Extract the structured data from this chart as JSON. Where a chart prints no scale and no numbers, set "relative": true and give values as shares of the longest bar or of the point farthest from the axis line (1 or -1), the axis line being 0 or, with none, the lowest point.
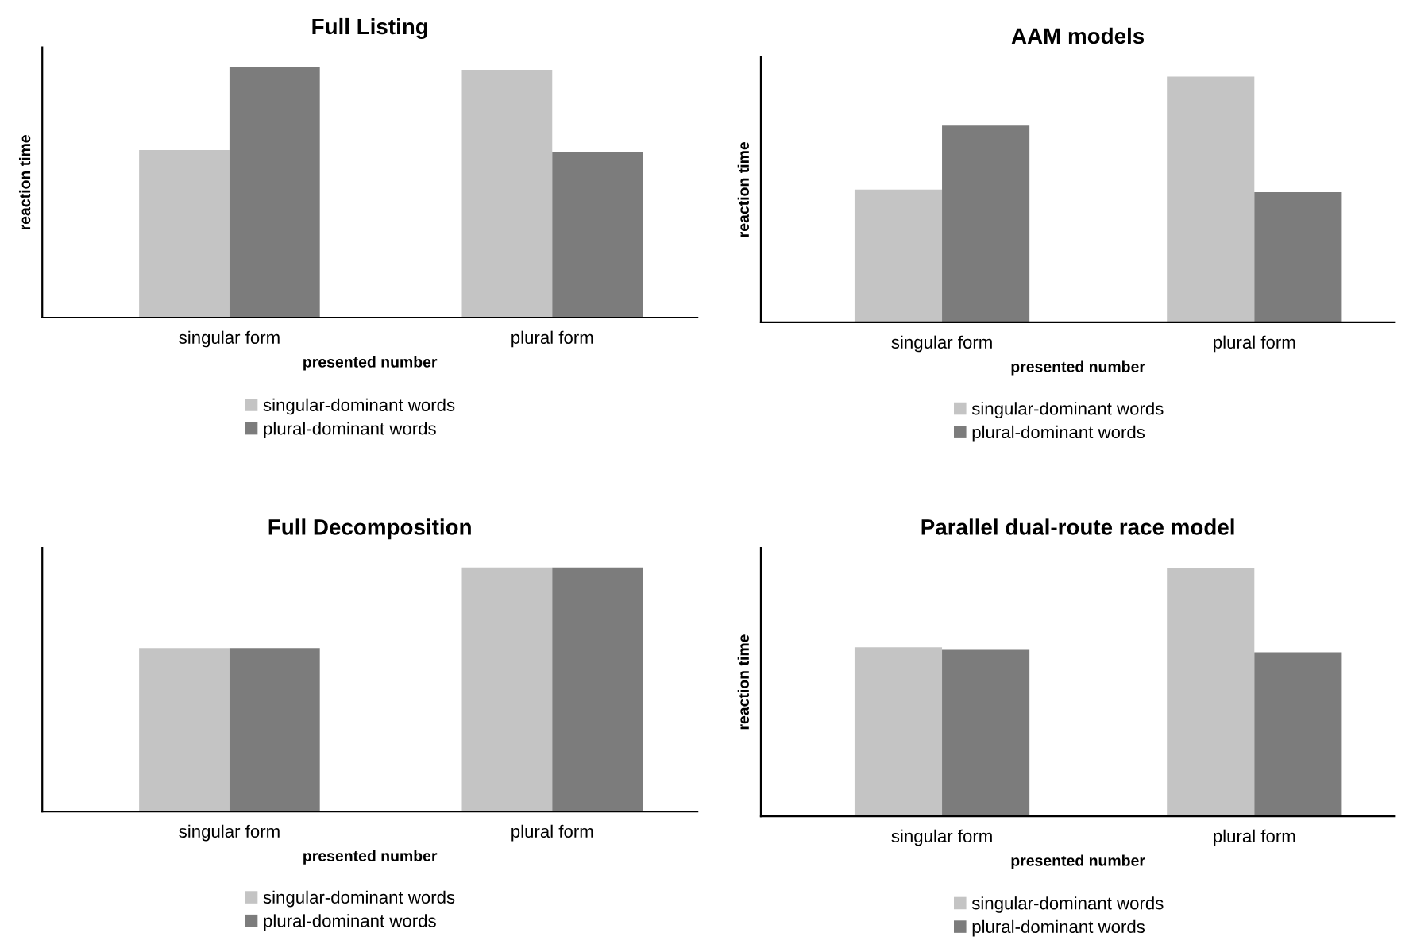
{
  "chart_data": [
    {
      "type": "bar",
      "title": "Full Listing",
      "xlabel": "presented number",
      "ylabel": "reaction time",
      "categories": [
        "singular form",
        "plural form"
      ],
      "relative": true,
      "legend": "bottom",
      "series": [
        {
          "name": "singular-dominant words",
          "color": "#c4c4c4",
          "values": [
            0.67,
            0.99
          ]
        },
        {
          "name": "plural-dominant words",
          "color": "#7c7c7c",
          "values": [
            1,
            0.66
          ]
        }
      ]
    },
    {
      "type": "bar",
      "title": "AAM models",
      "xlabel": "presented number",
      "ylabel": "reaction time",
      "categories": [
        "singular form",
        "plural form"
      ],
      "relative": true,
      "legend": "bottom",
      "series": [
        {
          "name": "singular-dominant words",
          "color": "#c4c4c4",
          "values": [
            0.54,
            1
          ]
        },
        {
          "name": "plural-dominant words",
          "color": "#7c7c7c",
          "values": [
            0.8,
            0.53
          ]
        }
      ]
    },
    {
      "type": "bar",
      "title": "Full Decomposition",
      "xlabel": "presented number",
      "categories": [
        "singular form",
        "plural form"
      ],
      "relative": true,
      "legend": "bottom",
      "series": [
        {
          "name": "singular-dominant words",
          "color": "#c4c4c4",
          "values": [
            0.67,
            1
          ]
        },
        {
          "name": "plural-dominant words",
          "color": "#7c7c7c",
          "values": [
            0.67,
            1
          ]
        }
      ]
    },
    {
      "type": "bar",
      "title": "Parallel dual-route race model",
      "xlabel": "presented number",
      "ylabel": "reaction time",
      "categories": [
        "singular form",
        "plural form"
      ],
      "relative": true,
      "legend": "bottom",
      "series": [
        {
          "name": "singular-dominant words",
          "color": "#c4c4c4",
          "values": [
            0.68,
            1
          ]
        },
        {
          "name": "plural-dominant words",
          "color": "#7c7c7c",
          "values": [
            0.67,
            0.66
          ]
        }
      ]
    }
  ]
}
